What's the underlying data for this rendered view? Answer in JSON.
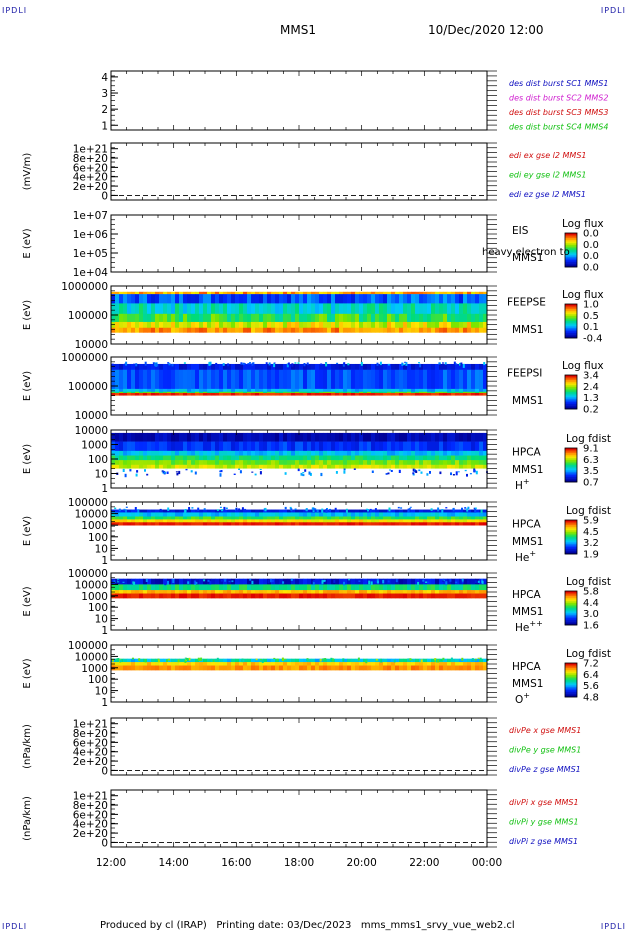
{
  "corner_labels": {
    "top_left": "IPDLI",
    "top_right": "IPDLI",
    "bottom_left": "IPDLI",
    "bottom_right": "IPDLI"
  },
  "header": {
    "spacecraft": "MMS1",
    "datetime": "10/Dec/2020 12:00"
  },
  "footer": {
    "text": "Produced by cl (IRAP)   Printing date: 03/Dec/2023   mms_mms1_srvy_vue_web2.cl"
  },
  "chart_data": {
    "type": "heatmap",
    "x_ticks": [
      "12:00",
      "14:00",
      "16:00",
      "18:00",
      "20:00",
      "22:00",
      "00:00"
    ],
    "x_range_hours": [
      12,
      24
    ],
    "panels": [
      {
        "id": "des",
        "kind": "linear",
        "yticks": [
          "4",
          "3",
          "2",
          "1"
        ],
        "ylabel": "",
        "legend": [
          {
            "text": "des dist burst SC1 MMS1",
            "color": "#1010c0"
          },
          {
            "text": "des dist burst SC2 MMS2",
            "color": "#d020d0"
          },
          {
            "text": "des dist burst SC3 MMS3",
            "color": "#d01010"
          },
          {
            "text": "des dist burst SC4 MMS4",
            "color": "#10c010"
          }
        ]
      },
      {
        "id": "edi",
        "kind": "linear",
        "yticks": [
          "1e+21",
          "8e+20",
          "6e+20",
          "4e+20",
          "2e+20",
          "0"
        ],
        "ylabel": "(mV/m)",
        "legend": [
          {
            "text": "edi ex gse l2 MMS1",
            "color": "#d01010"
          },
          {
            "text": "edi ey gse l2 MMS1",
            "color": "#10c010"
          },
          {
            "text": "edi ez gse l2 MMS1",
            "color": "#1010c0"
          }
        ]
      },
      {
        "id": "eis",
        "kind": "spec",
        "yticks": [
          "1e+07",
          "1e+06",
          "1e+05",
          "1e+04"
        ],
        "ylabel": "E (eV)",
        "inst": [
          "EIS",
          "MMS1"
        ],
        "overlay": "heavy electron to",
        "cbar_title": "Log flux",
        "cbar_ticks": [
          "0.0",
          "0.0",
          "0.0",
          "0.0"
        ]
      },
      {
        "id": "feepse",
        "kind": "spec",
        "yticks": [
          "1000000",
          "100000",
          "10000"
        ],
        "ylabel": "E (eV)",
        "inst": [
          "FEEPSE",
          "MMS1"
        ],
        "cbar_title": "Log flux",
        "cbar_ticks": [
          "1.0",
          "0.5",
          "0.1",
          "-0.4"
        ]
      },
      {
        "id": "feepsi",
        "kind": "spec",
        "yticks": [
          "1000000",
          "100000",
          "10000"
        ],
        "ylabel": "E (eV)",
        "inst": [
          "FEEPSI",
          "MMS1"
        ],
        "cbar_title": "Log flux",
        "cbar_ticks": [
          "3.4",
          "2.4",
          "1.3",
          "0.2"
        ]
      },
      {
        "id": "hpca_h",
        "kind": "spec",
        "yticks": [
          "10000",
          "1000",
          "100",
          "10",
          "1"
        ],
        "ylabel": "E (eV)",
        "inst": [
          "HPCA",
          "MMS1",
          "H+"
        ],
        "cbar_title": "Log fdist",
        "cbar_ticks": [
          "9.1",
          "6.3",
          "3.5",
          "0.7"
        ]
      },
      {
        "id": "hpca_he",
        "kind": "spec",
        "yticks": [
          "100000",
          "10000",
          "1000",
          "100",
          "10",
          "1"
        ],
        "ylabel": "E (eV)",
        "inst": [
          "HPCA",
          "MMS1",
          "He+"
        ],
        "cbar_title": "Log fdist",
        "cbar_ticks": [
          "5.9",
          "4.5",
          "3.2",
          "1.9"
        ]
      },
      {
        "id": "hpca_hepp",
        "kind": "spec",
        "yticks": [
          "100000",
          "10000",
          "1000",
          "100",
          "10",
          "1"
        ],
        "ylabel": "E (eV)",
        "inst": [
          "HPCA",
          "MMS1",
          "He++"
        ],
        "cbar_title": "Log fdist",
        "cbar_ticks": [
          "5.8",
          "4.4",
          "3.0",
          "1.6"
        ]
      },
      {
        "id": "hpca_o",
        "kind": "spec",
        "yticks": [
          "100000",
          "10000",
          "1000",
          "100",
          "10",
          "1"
        ],
        "ylabel": "E (eV)",
        "inst": [
          "HPCA",
          "MMS1",
          "O+"
        ],
        "cbar_title": "Log fdist",
        "cbar_ticks": [
          "7.2",
          "6.4",
          "5.6",
          "4.8"
        ]
      },
      {
        "id": "divpe",
        "kind": "linear",
        "yticks": [
          "1e+21",
          "8e+20",
          "6e+20",
          "4e+20",
          "2e+20",
          "0"
        ],
        "ylabel": "(nPa/km)",
        "legend": [
          {
            "text": "divPe x gse MMS1",
            "color": "#d01010"
          },
          {
            "text": "divPe y gse MMS1",
            "color": "#10c010"
          },
          {
            "text": "divPe z gse MMS1",
            "color": "#1010c0"
          }
        ]
      },
      {
        "id": "divpi",
        "kind": "linear",
        "yticks": [
          "1e+21",
          "8e+20",
          "6e+20",
          "4e+20",
          "2e+20",
          "0"
        ],
        "ylabel": "(nPa/km)",
        "legend": [
          {
            "text": "divPi x gse MMS1",
            "color": "#d01010"
          },
          {
            "text": "divPi y gse MMS1",
            "color": "#10c010"
          },
          {
            "text": "divPi z gse MMS1",
            "color": "#1010c0"
          }
        ]
      }
    ]
  }
}
